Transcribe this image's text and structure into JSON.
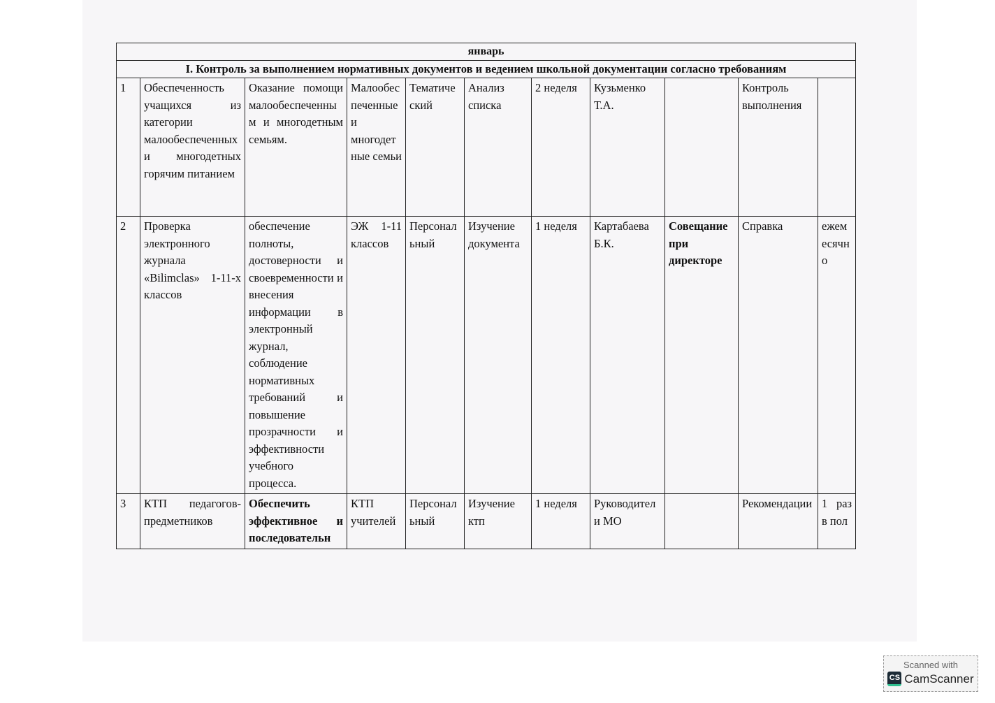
{
  "month": "январь",
  "section": "I. Контроль за выполнением нормативных документов и ведением школьной документации согласно требованиям",
  "rows": [
    {
      "cells": [
        "1",
        "Обеспеченность учащихся из категории малообеспеченных и многодетных горячим питанием",
        "Оказание помощи малообеспеченным и многодетным семьям.",
        "Малообеспеченные и многодетные семьи",
        "Тематический",
        "Анализ списка",
        "2 неделя",
        "Кузьменко Т.А.",
        "",
        "Контроль выполнения",
        ""
      ]
    },
    {
      "cells": [
        "2",
        "Проверка электронного журнала «Bilimclas» 1-11-х классов",
        "обеспечение полноты, достоверности и своевременности и внесения информации в электронный журнал, соблюдение нормативных требований и повышение прозрачности и эффективности учебного процесса.",
        "ЭЖ 1-11 классов",
        "Персональный",
        "Изучение документа",
        "1 неделя",
        "Картабаева Б.К.",
        "Совещание при директоре",
        "Справка",
        "ежемесячно"
      ]
    },
    {
      "cells": [
        "3",
        "КТП педагогов-предметников",
        "Обеспечить эффективное и последовательн",
        "КТП учителей",
        "Персональный",
        "Изучение ктп",
        "1 неделя",
        "Руководители МО",
        "",
        "Рекомендации",
        "1 раз в пол"
      ]
    }
  ],
  "watermark": {
    "line1": "Scanned with",
    "brand": "CamScanner",
    "logo": "CS"
  }
}
